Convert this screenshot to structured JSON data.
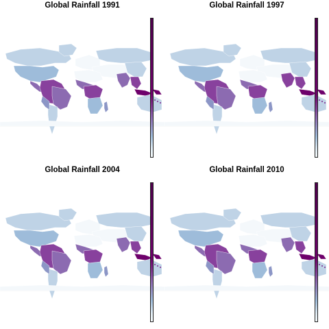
{
  "panels": [
    {
      "title": "Global Rainfall 1991"
    },
    {
      "title": "Global Rainfall 1997"
    },
    {
      "title": "Global Rainfall 2004"
    },
    {
      "title": "Global Rainfall 2010"
    }
  ],
  "palette": {
    "very_low": "#f4f8fb",
    "low": "#bfd3e6",
    "mid_low": "#9ebcda",
    "mid": "#8c96c6",
    "mid_high": "#8c6bb1",
    "high": "#88419d",
    "very_high": "#6e016b",
    "darkest": "#4d004b",
    "border": "#d9d9d9"
  },
  "legend": {
    "type": "sequential color bar",
    "colors": [
      "#4d004b",
      "#6e016b",
      "#88419d",
      "#8c6bb1",
      "#8c96c6",
      "#9ebcda",
      "#bfd3e6",
      "#e0ecf4",
      "#f7fcfd"
    ]
  }
}
